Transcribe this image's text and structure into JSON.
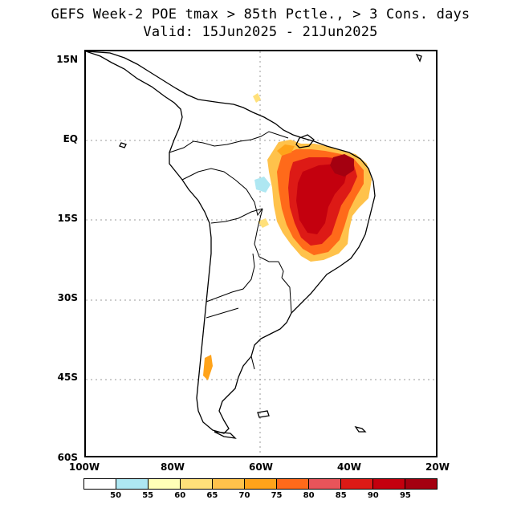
{
  "title": {
    "line1": "GEFS Week-2 POE tmax > 85th Pctle., > 3 Cons. days",
    "line2": "Valid: 15Jun2025 - 21Jun2025"
  },
  "map": {
    "region": "South America",
    "latitude_labels": [
      "15N",
      "EQ",
      "15S",
      "30S",
      "45S",
      "60S"
    ],
    "longitude_labels": [
      "100W",
      "80W",
      "60W",
      "40W",
      "20W"
    ],
    "lon_range": [
      -100,
      -20
    ],
    "lat_range": [
      -60,
      15
    ],
    "gridlines": "dotted",
    "colors": {
      "coastline": "#000000",
      "gridline": "#999999"
    }
  },
  "legend": {
    "bins": [
      {
        "color": "#ffffff"
      },
      {
        "color": "#aee7f2"
      },
      {
        "color": "#ffffb8"
      },
      {
        "color": "#ffe07a"
      },
      {
        "color": "#ffc24b"
      },
      {
        "color": "#ffa31a"
      },
      {
        "color": "#ff6a1a"
      },
      {
        "color": "#e8545a"
      },
      {
        "color": "#dd1a16"
      },
      {
        "color": "#c4000e"
      },
      {
        "color": "#a40010"
      }
    ],
    "labels": [
      "50",
      "55",
      "60",
      "65",
      "70",
      "75",
      "80",
      "85",
      "90",
      "95"
    ]
  }
}
